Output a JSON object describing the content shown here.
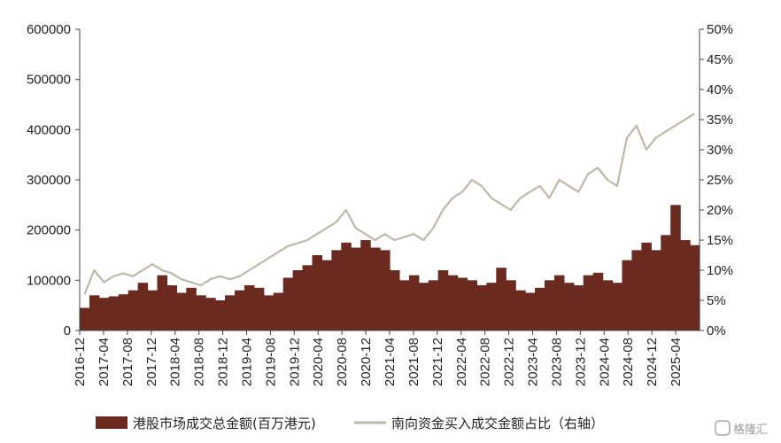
{
  "chart_data": {
    "type": "bar+line",
    "x_tick_labels": [
      "2016-12",
      "2017-04",
      "2017-08",
      "2017-12",
      "2018-04",
      "2018-08",
      "2018-12",
      "2019-04",
      "2019-08",
      "2019-12",
      "2020-04",
      "2020-08",
      "2020-12",
      "2021-04",
      "2021-08",
      "2021-12",
      "2022-04",
      "2022-08",
      "2022-12",
      "2023-04",
      "2023-08",
      "2023-12",
      "2024-04",
      "2024-08",
      "2024-12",
      "2025-04"
    ],
    "left_axis": {
      "ylim": [
        0,
        600000
      ],
      "ticks": [
        "0",
        "100000",
        "200000",
        "300000",
        "400000",
        "500000",
        "600000"
      ]
    },
    "right_axis": {
      "ylim": [
        0,
        0.5
      ],
      "ticks": [
        "0%",
        "5%",
        "10%",
        "15%",
        "20%",
        "25%",
        "30%",
        "35%",
        "40%",
        "45%",
        "50%"
      ]
    },
    "series": [
      {
        "name": "港股市场成交总金额(百万港元)",
        "kind": "bar",
        "axis": "left",
        "color": "#6b2a1f",
        "values": [
          45000,
          70000,
          65000,
          68000,
          72000,
          80000,
          95000,
          80000,
          110000,
          90000,
          75000,
          85000,
          70000,
          65000,
          60000,
          70000,
          80000,
          90000,
          85000,
          70000,
          75000,
          105000,
          120000,
          130000,
          150000,
          140000,
          160000,
          175000,
          165000,
          180000,
          165000,
          160000,
          120000,
          100000,
          110000,
          95000,
          100000,
          120000,
          110000,
          105000,
          100000,
          90000,
          95000,
          125000,
          100000,
          80000,
          75000,
          85000,
          100000,
          110000,
          95000,
          90000,
          110000,
          115000,
          100000,
          95000,
          140000,
          160000,
          175000,
          160000,
          190000,
          250000,
          180000,
          170000
        ]
      },
      {
        "name": "南向资金买入成交金额占比（右轴）",
        "kind": "line",
        "axis": "right",
        "color": "#bdb8a8",
        "values": [
          0.06,
          0.1,
          0.08,
          0.09,
          0.095,
          0.09,
          0.1,
          0.11,
          0.1,
          0.095,
          0.085,
          0.08,
          0.075,
          0.085,
          0.09,
          0.085,
          0.09,
          0.1,
          0.11,
          0.12,
          0.13,
          0.14,
          0.145,
          0.15,
          0.16,
          0.17,
          0.18,
          0.2,
          0.17,
          0.16,
          0.15,
          0.16,
          0.15,
          0.155,
          0.16,
          0.15,
          0.17,
          0.2,
          0.22,
          0.23,
          0.25,
          0.24,
          0.22,
          0.21,
          0.2,
          0.22,
          0.23,
          0.24,
          0.22,
          0.25,
          0.24,
          0.23,
          0.26,
          0.27,
          0.25,
          0.24,
          0.32,
          0.34,
          0.3,
          0.32,
          0.33,
          0.34,
          0.35,
          0.36
        ]
      }
    ],
    "grid": false
  },
  "watermark": "格隆汇",
  "colors": {
    "bar": "#6b2a1f",
    "line": "#bdb8a8",
    "axis": "#444444"
  }
}
